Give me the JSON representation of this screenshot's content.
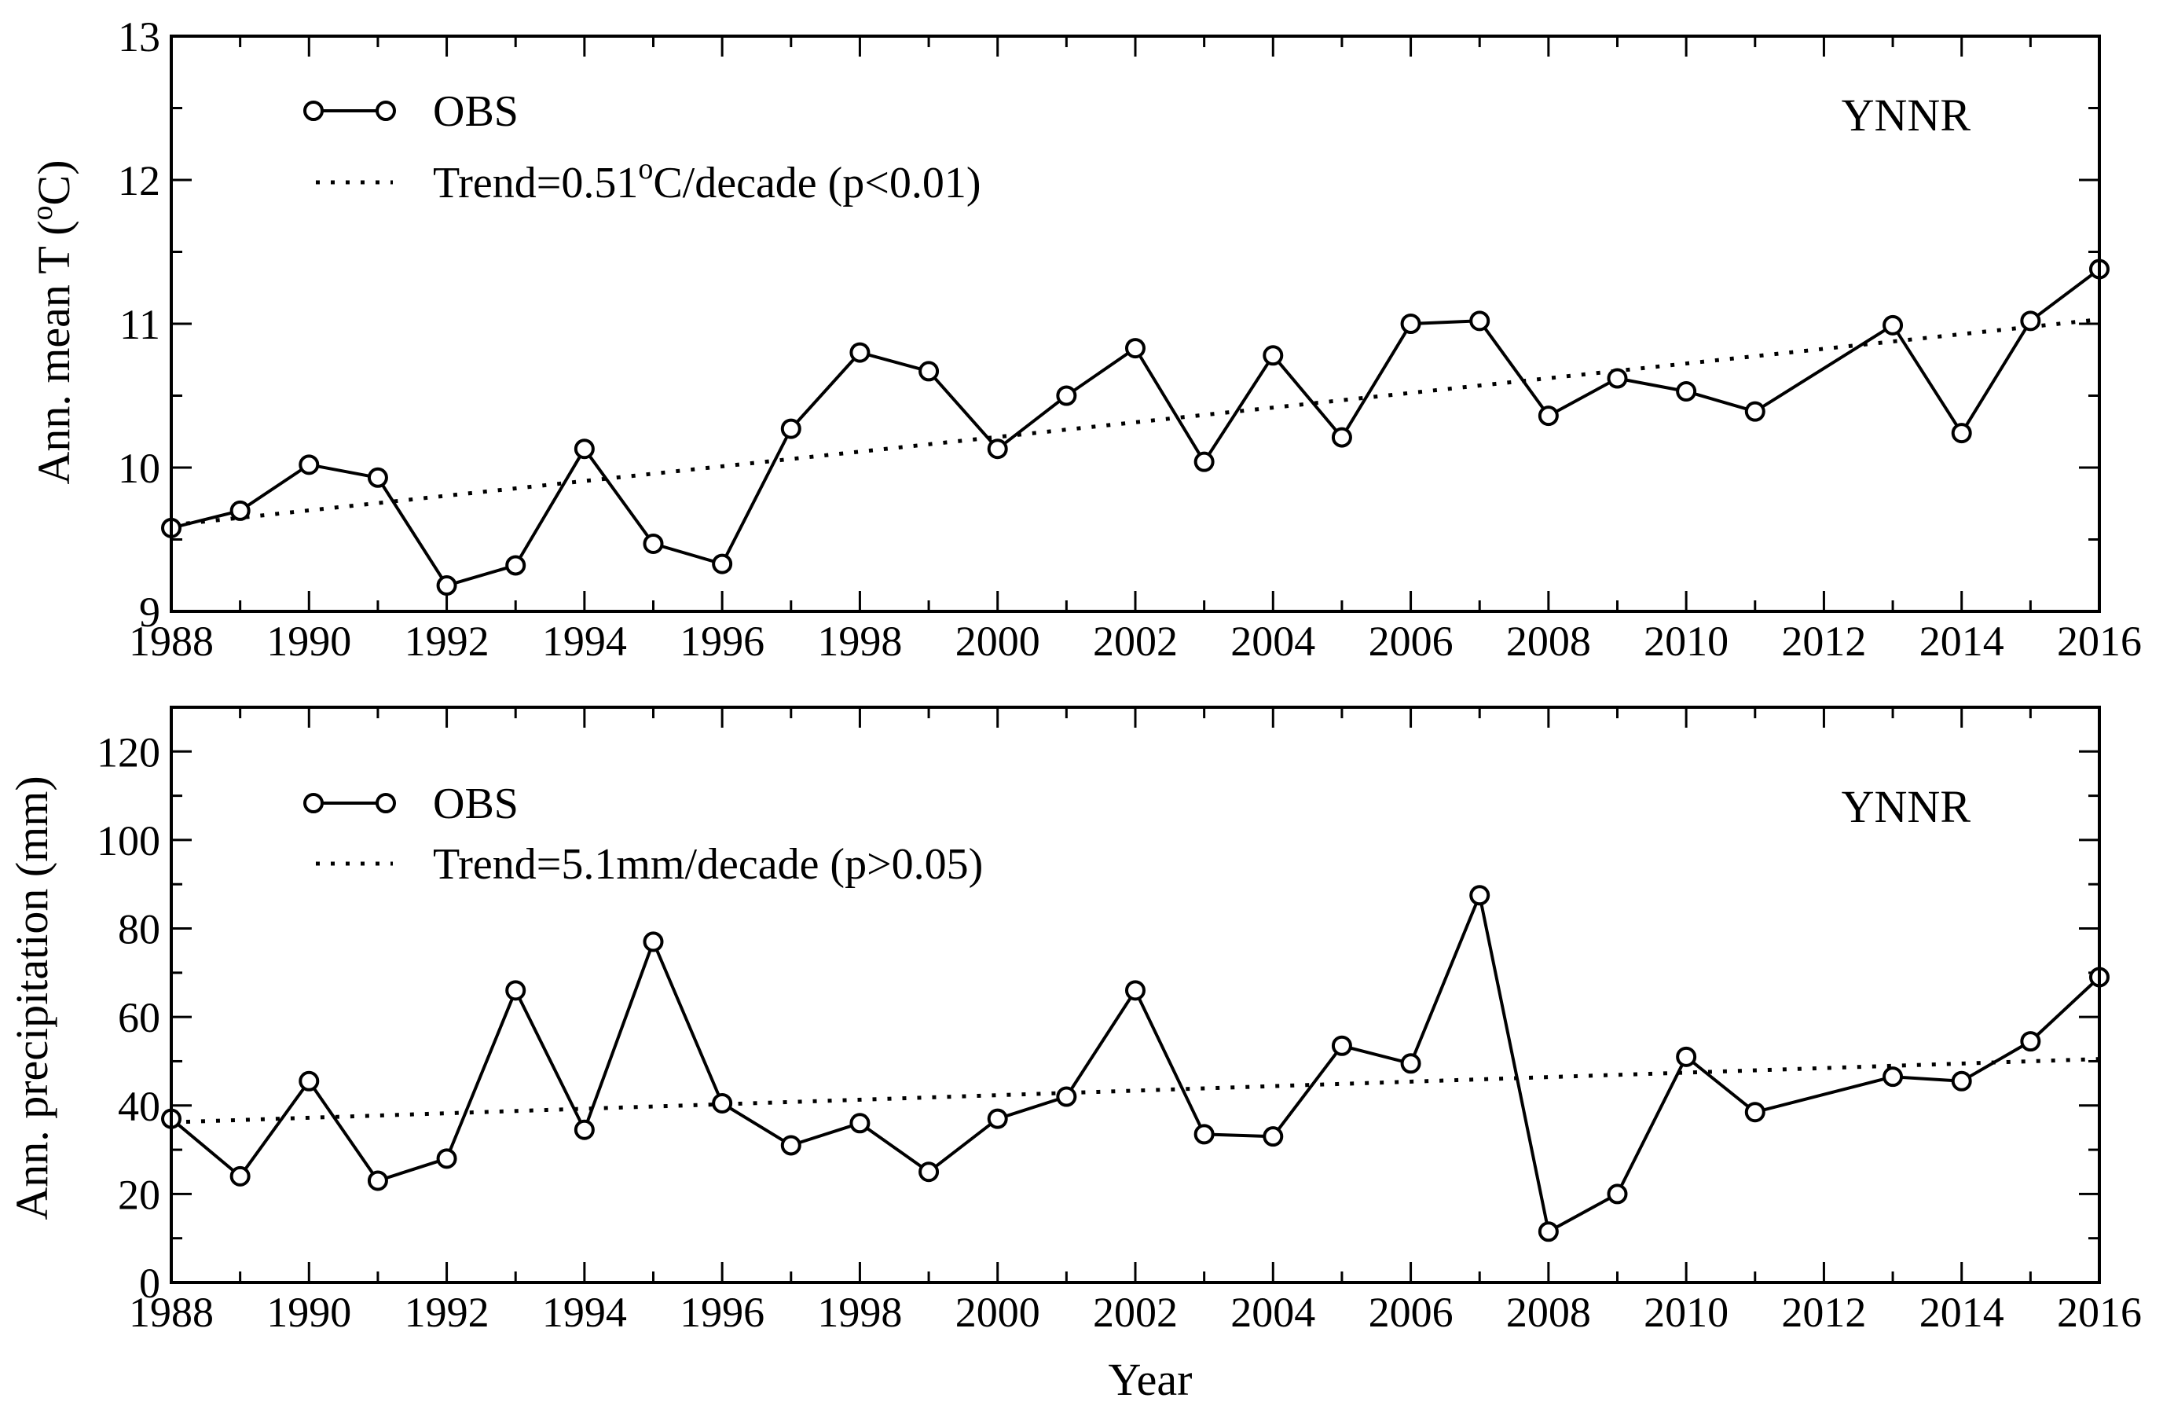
{
  "chart_data": [
    {
      "type": "line",
      "panel": "top",
      "xlabel": "",
      "ylabel": "Ann. mean T (",
      "ylabel_unit_sup": "o",
      "ylabel_unit_tail": "C)",
      "xlim": [
        1988,
        2016
      ],
      "ylim": [
        9,
        13
      ],
      "x_ticks": [
        1988,
        1990,
        1992,
        1994,
        1996,
        1998,
        2000,
        2002,
        2004,
        2006,
        2008,
        2010,
        2012,
        2014,
        2016
      ],
      "x_tick_labels": [
        "1988",
        "1990",
        "1992",
        "1994",
        "1996",
        "1998",
        "2000",
        "2002",
        "2004",
        "2006",
        "2008",
        "2010",
        "2012",
        "2014",
        "2016"
      ],
      "y_ticks": [
        9,
        10,
        11,
        12,
        13
      ],
      "y_tick_labels": [
        "9",
        "10",
        "11",
        "12",
        "13"
      ],
      "y_minor_step": 0.5,
      "station": "YNNR",
      "legend": {
        "obs_label": "OBS",
        "trend_label_pre": "Trend=0.51",
        "trend_label_sup": "o",
        "trend_label_post": "C/decade (p<0.01)",
        "position": "top-left"
      },
      "series": [
        {
          "name": "OBS",
          "style": "solid line with open circles",
          "x": [
            1988,
            1989,
            1990,
            1991,
            1992,
            1993,
            1994,
            1995,
            1996,
            1997,
            1998,
            1999,
            2000,
            2001,
            2002,
            2003,
            2004,
            2005,
            2006,
            2007,
            2008,
            2009,
            2010,
            2011,
            2013,
            2014,
            2015,
            2016
          ],
          "y": [
            9.58,
            9.7,
            10.02,
            9.93,
            9.18,
            9.32,
            10.13,
            9.47,
            9.33,
            10.27,
            10.8,
            10.67,
            10.13,
            10.5,
            10.83,
            10.04,
            10.78,
            10.21,
            11.0,
            11.02,
            10.36,
            10.62,
            10.53,
            10.39,
            10.99,
            10.24,
            11.02,
            11.38
          ]
        },
        {
          "name": "Trend",
          "style": "dotted",
          "x": [
            1988,
            2016
          ],
          "y": [
            9.6,
            11.03
          ]
        }
      ]
    },
    {
      "type": "line",
      "panel": "bottom",
      "xlabel": "Year",
      "ylabel": "Ann. precipitation (mm)",
      "xlim": [
        1988,
        2016
      ],
      "ylim": [
        0,
        130
      ],
      "x_ticks": [
        1988,
        1990,
        1992,
        1994,
        1996,
        1998,
        2000,
        2002,
        2004,
        2006,
        2008,
        2010,
        2012,
        2014,
        2016
      ],
      "x_tick_labels": [
        "1988",
        "1990",
        "1992",
        "1994",
        "1996",
        "1998",
        "2000",
        "2002",
        "2004",
        "2006",
        "2008",
        "2010",
        "2012",
        "2014",
        "2016"
      ],
      "y_ticks": [
        0,
        20,
        40,
        60,
        80,
        100,
        120
      ],
      "y_tick_labels": [
        "0",
        "20",
        "40",
        "60",
        "80",
        "100",
        "120"
      ],
      "y_minor_step": 10,
      "station": "YNNR",
      "legend": {
        "obs_label": "OBS",
        "trend_label": "Trend=5.1mm/decade (p>0.05)",
        "position": "top-left"
      },
      "series": [
        {
          "name": "OBS",
          "style": "solid line with open circles",
          "x": [
            1988,
            1989,
            1990,
            1991,
            1992,
            1993,
            1994,
            1995,
            1996,
            1997,
            1998,
            1999,
            2000,
            2001,
            2002,
            2003,
            2004,
            2005,
            2006,
            2007,
            2008,
            2009,
            2010,
            2011,
            2013,
            2014,
            2015,
            2016
          ],
          "y": [
            37,
            24,
            45.5,
            23,
            28,
            66,
            34.5,
            77,
            40.5,
            31,
            36,
            25,
            37,
            42,
            66,
            33.5,
            33,
            53.5,
            49.5,
            87.5,
            11.5,
            20,
            51,
            38.5,
            46.5,
            45.5,
            54.5,
            69
          ]
        },
        {
          "name": "Trend",
          "style": "dotted",
          "x": [
            1988,
            2016
          ],
          "y": [
            36.2,
            50.5
          ]
        }
      ]
    }
  ]
}
